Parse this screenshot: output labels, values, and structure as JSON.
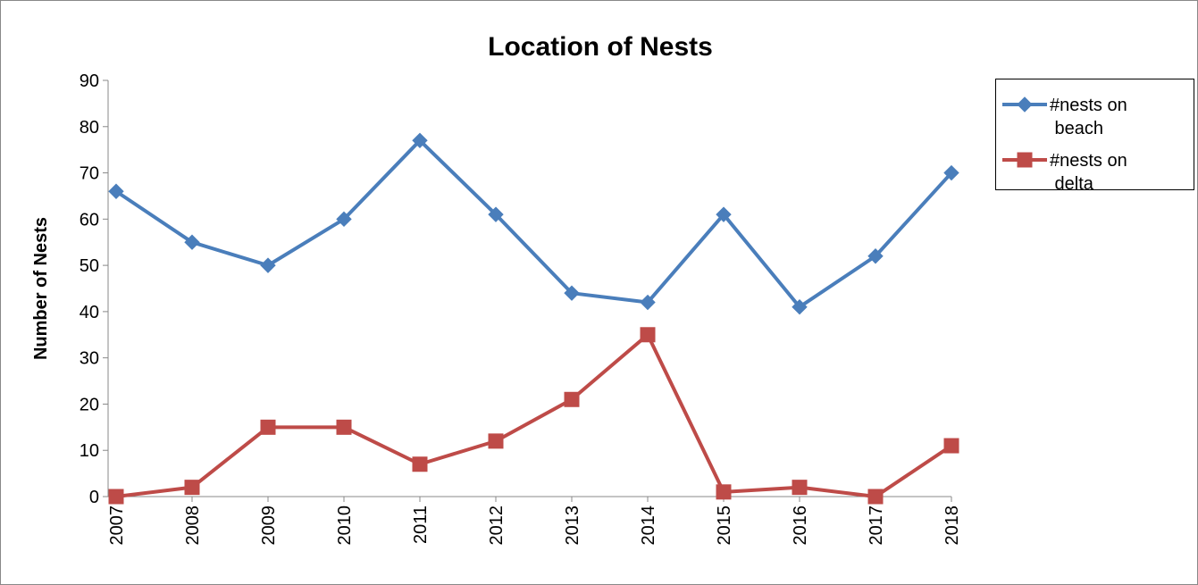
{
  "chart_data": {
    "type": "line",
    "title": "Location of Nests",
    "y_label": "Number of Nests",
    "categories": [
      "2007",
      "2008",
      "2009",
      "2010",
      "2011",
      "2012",
      "2013",
      "2014",
      "2015",
      "2016",
      "2017",
      "2018"
    ],
    "series": [
      {
        "name": "#nests on beach",
        "color": "#4a7ebb",
        "marker": "diamond",
        "values": [
          66,
          55,
          50,
          60,
          77,
          61,
          44,
          42,
          61,
          41,
          52,
          70
        ]
      },
      {
        "name": "#nests on delta",
        "color": "#be4b48",
        "marker": "square",
        "values": [
          0,
          2,
          15,
          15,
          7,
          12,
          21,
          35,
          1,
          2,
          0,
          11
        ]
      }
    ],
    "ylim": [
      0,
      90
    ],
    "yticks": [
      0,
      10,
      20,
      30,
      40,
      50,
      60,
      70,
      80,
      90
    ],
    "grid": false,
    "legend": "right"
  }
}
